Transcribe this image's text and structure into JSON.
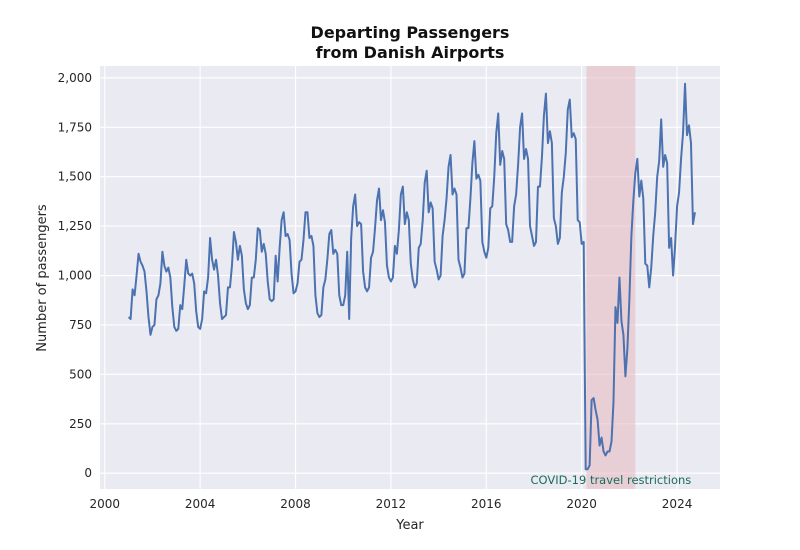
{
  "chart_data": {
    "type": "line",
    "title_lines": [
      "Departing Passengers",
      "from Danish Airports"
    ],
    "xlabel": "Year",
    "ylabel": "Number of passengers",
    "xlim": [
      1999.8,
      2025.8
    ],
    "ylim": [
      -80,
      2060
    ],
    "xticks": [
      2000,
      2004,
      2008,
      2012,
      2016,
      2020,
      2024
    ],
    "xtick_labels": [
      "2000",
      "2004",
      "2008",
      "2012",
      "2016",
      "2020",
      "2024"
    ],
    "yticks": [
      0,
      250,
      500,
      750,
      1000,
      1250,
      1500,
      1750,
      2000
    ],
    "ytick_labels": [
      "0",
      "250",
      "500",
      "750",
      "1,000",
      "1,250",
      "1,500",
      "1,750",
      "2,000"
    ],
    "grid": true,
    "colors": {
      "line": "#4c72b0",
      "background": "#eaeaf2",
      "grid": "#ffffff",
      "span": "#e6b8c0",
      "annotation": "#1a6b5c"
    },
    "highlight_span": {
      "x_start": 2020.2,
      "x_end": 2022.25,
      "label": "COVID-19 travel restrictions"
    },
    "series": [
      {
        "start": 2001,
        "values": [
          790,
          780,
          930,
          900,
          1000,
          1110,
          1070,
          1050,
          1020,
          920,
          790,
          700,
          740,
          750,
          880,
          900,
          960,
          1120,
          1050,
          1020,
          1040,
          990,
          840,
          740,
          720,
          730,
          850,
          830,
          950,
          1080,
          1010,
          1000,
          1010,
          960,
          820,
          740,
          730,
          780,
          920,
          910,
          990,
          1190,
          1080,
          1030,
          1080,
          1000,
          860,
          780,
          790,
          800,
          940,
          940,
          1050,
          1220,
          1170,
          1080,
          1150,
          1100,
          930,
          860,
          830,
          850,
          990,
          990,
          1080,
          1240,
          1230,
          1120,
          1160,
          1110,
          970,
          880,
          870,
          880,
          1100,
          970,
          1140,
          1280,
          1320,
          1200,
          1210,
          1180,
          1010,
          910,
          920,
          960,
          1070,
          1080,
          1180,
          1320,
          1320,
          1190,
          1200,
          1150,
          900,
          810,
          790,
          800,
          940,
          980,
          1080,
          1210,
          1230,
          1110,
          1130,
          1110,
          900,
          850,
          850,
          900,
          1120,
          780,
          1190,
          1350,
          1410,
          1250,
          1270,
          1260,
          1020,
          940,
          920,
          940,
          1090,
          1120,
          1240,
          1380,
          1440,
          1280,
          1330,
          1270,
          1050,
          990,
          970,
          990,
          1150,
          1110,
          1230,
          1410,
          1450,
          1260,
          1320,
          1280,
          1060,
          980,
          940,
          960,
          1140,
          1160,
          1280,
          1470,
          1530,
          1320,
          1370,
          1340,
          1070,
          1030,
          980,
          1000,
          1200,
          1280,
          1390,
          1550,
          1610,
          1410,
          1440,
          1410,
          1080,
          1040,
          990,
          1010,
          1240,
          1240,
          1390,
          1570,
          1680,
          1490,
          1510,
          1480,
          1170,
          1120,
          1090,
          1140,
          1340,
          1350,
          1500,
          1720,
          1820,
          1560,
          1630,
          1590,
          1260,
          1230,
          1170,
          1170,
          1350,
          1410,
          1560,
          1750,
          1820,
          1590,
          1640,
          1590,
          1250,
          1200,
          1150,
          1170,
          1450,
          1450,
          1600,
          1810,
          1920,
          1670,
          1730,
          1670,
          1290,
          1250,
          1160,
          1190,
          1420,
          1500,
          1620,
          1840,
          1890,
          1700,
          1720,
          1690,
          1280,
          1270,
          1160,
          1170,
          20,
          20,
          40,
          370,
          380,
          320,
          270,
          140,
          180,
          110,
          90,
          110,
          110,
          160,
          360,
          840,
          760,
          990,
          770,
          700,
          490,
          630,
          880,
          1200,
          1380,
          1520,
          1590,
          1400,
          1480,
          1390,
          1060,
          1050,
          940,
          1040,
          1200,
          1320,
          1500,
          1580,
          1790,
          1550,
          1610,
          1570,
          1140,
          1190,
          1000,
          1150,
          1350,
          1420,
          1590,
          1720,
          1970,
          1710,
          1760,
          1670,
          1260,
          1320
        ]
      }
    ]
  }
}
